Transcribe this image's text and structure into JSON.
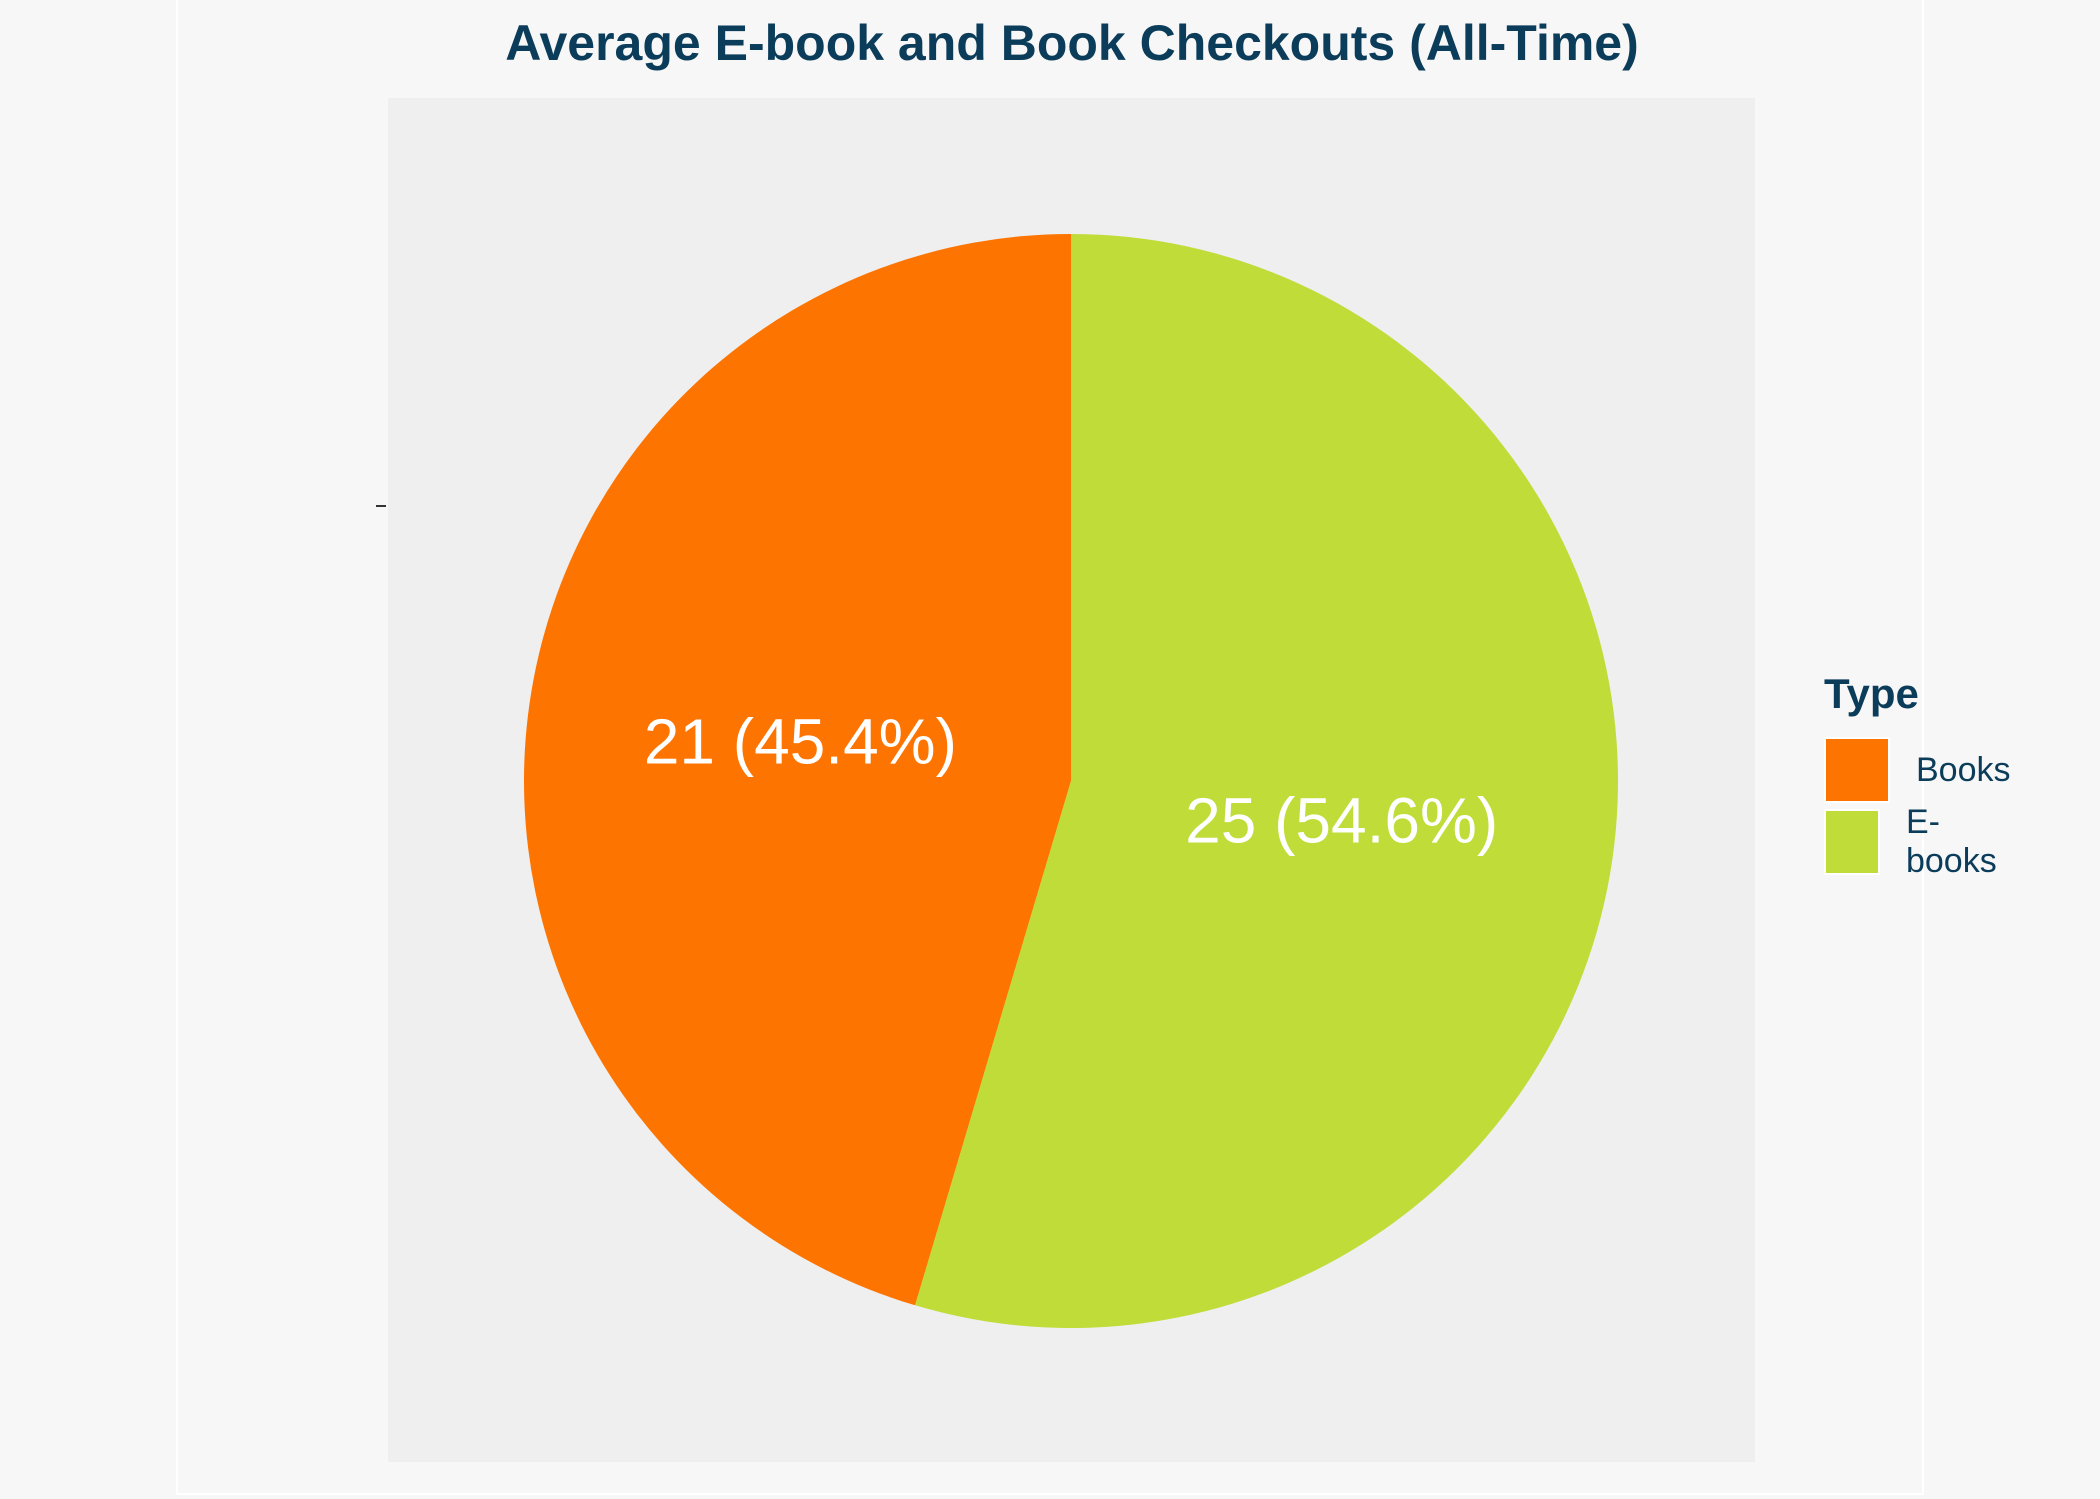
{
  "chart_data": {
    "type": "pie",
    "title": "Average E-book and Book Checkouts (All-Time)",
    "legend": {
      "title": "Type",
      "placement": "right"
    },
    "slices": [
      {
        "name": "Books",
        "value": 21,
        "percent": 45.4,
        "label": "21 (45.4%)",
        "color": "#fd7400"
      },
      {
        "name": "E-books",
        "value": 25,
        "percent": 54.6,
        "label": "25 (54.6%)",
        "color": "#bfdc38"
      }
    ],
    "grid": false
  }
}
